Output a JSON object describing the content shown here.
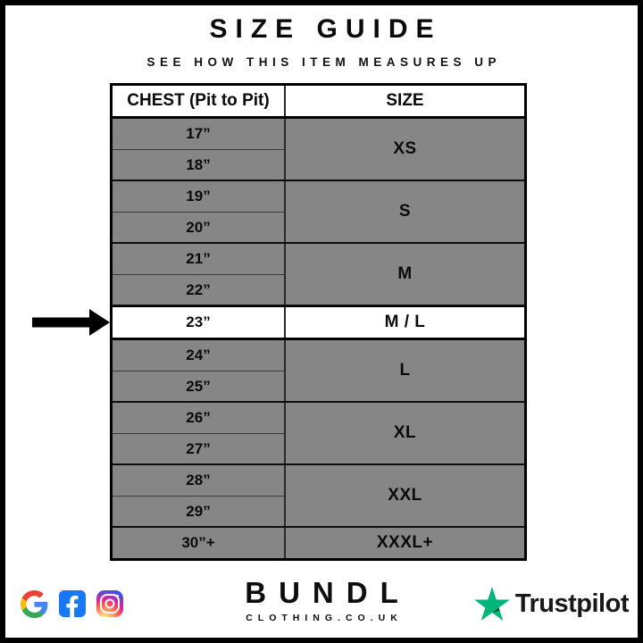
{
  "header": {
    "title": "SIZE GUIDE",
    "subtitle": "SEE HOW THIS ITEM MEASURES UP"
  },
  "table": {
    "col_headers": [
      "CHEST (Pit to Pit)",
      "SIZE"
    ],
    "groups": [
      {
        "chest": [
          "17”",
          "18”"
        ],
        "size": "XS",
        "highlight": false
      },
      {
        "chest": [
          "19”",
          "20”"
        ],
        "size": "S",
        "highlight": false
      },
      {
        "chest": [
          "21”",
          "22”"
        ],
        "size": "M",
        "highlight": false
      },
      {
        "chest": [
          "23”"
        ],
        "size": "M / L",
        "highlight": true
      },
      {
        "chest": [
          "24”",
          "25”"
        ],
        "size": "L",
        "highlight": false
      },
      {
        "chest": [
          "26”",
          "27”"
        ],
        "size": "XL",
        "highlight": false
      },
      {
        "chest": [
          "28”",
          "29”"
        ],
        "size": "XXL",
        "highlight": false
      },
      {
        "chest": [
          "30”+"
        ],
        "size": "XXXL+",
        "highlight": false
      }
    ]
  },
  "chart_data": {
    "type": "table",
    "title": "SIZE GUIDE",
    "subtitle": "SEE HOW THIS ITEM MEASURES UP",
    "columns": [
      "CHEST (Pit to Pit)",
      "SIZE"
    ],
    "rows": [
      [
        "17”",
        "XS"
      ],
      [
        "18”",
        "XS"
      ],
      [
        "19”",
        "S"
      ],
      [
        "20”",
        "S"
      ],
      [
        "21”",
        "M"
      ],
      [
        "22”",
        "M"
      ],
      [
        "23”",
        "M / L"
      ],
      [
        "24”",
        "L"
      ],
      [
        "25”",
        "L"
      ],
      [
        "26”",
        "XL"
      ],
      [
        "27”",
        "XL"
      ],
      [
        "28”",
        "XXL"
      ],
      [
        "29”",
        "XXL"
      ],
      [
        "30”+",
        "XXXL+"
      ]
    ],
    "highlighted_row_index": 6,
    "highlight_marker": "black-right-arrow"
  },
  "footer": {
    "brand_name": "BUNDL",
    "brand_domain": "CLOTHING.CO.UK",
    "social_icons": [
      "google-icon",
      "facebook-icon",
      "instagram-icon"
    ],
    "trustpilot_label": "Trustpilot"
  },
  "colors": {
    "frame_black": "#000000",
    "row_gray": "#868686",
    "highlight_white": "#ffffff",
    "text_black": "#0a0a0a",
    "trustpilot_green": "#00B67A",
    "trustpilot_shadow_green": "#005128",
    "facebook_blue": "#1877F2",
    "google_red": "#EA4335",
    "google_blue": "#4285F4",
    "google_yellow": "#FBBC05",
    "google_green": "#34A853"
  }
}
